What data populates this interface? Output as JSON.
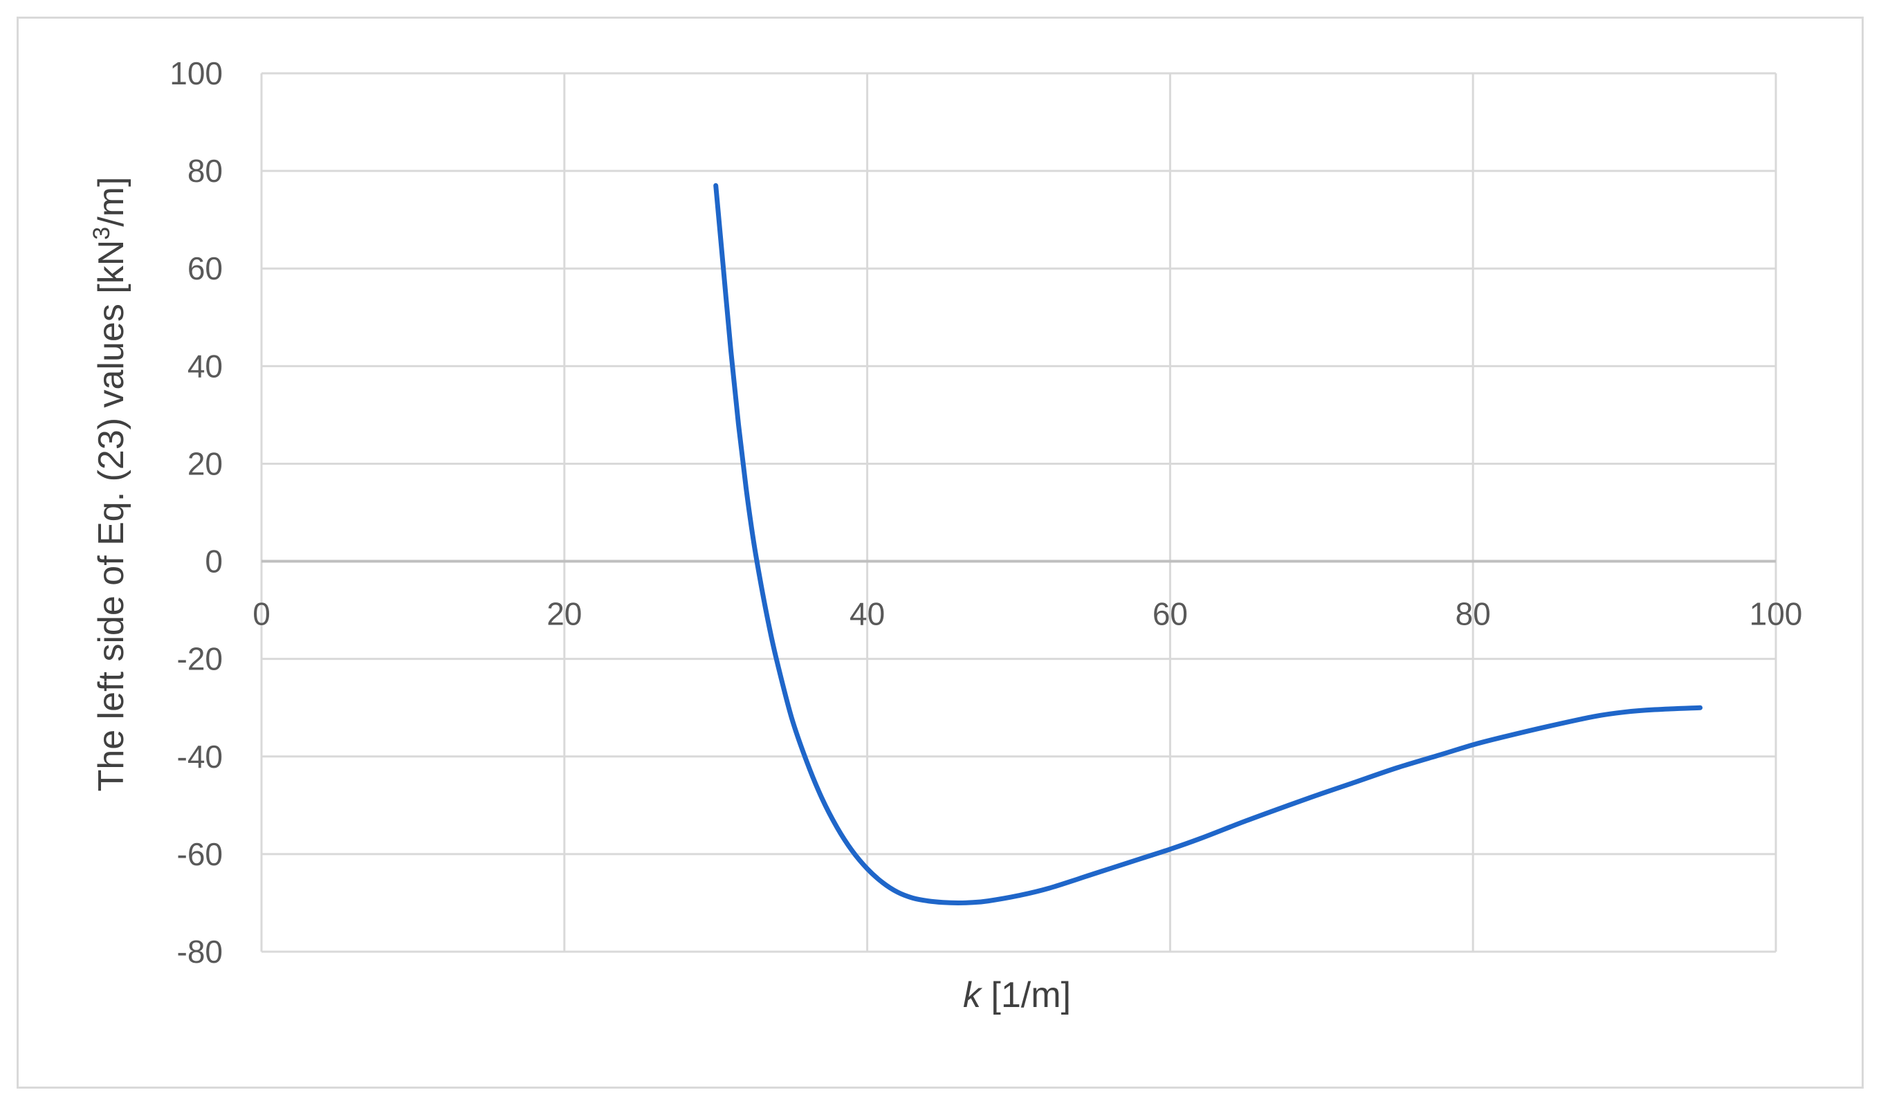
{
  "chart_data": {
    "type": "line",
    "xlabel": {
      "variable": "k",
      "unit": " [1/m]"
    },
    "ylabel": {
      "before_sup": "The left side of Eq. (23) values [kN",
      "sup": "3",
      "after_sup": "/m]"
    },
    "xlim": [
      0,
      100
    ],
    "ylim": [
      -80,
      100
    ],
    "x_ticks": [
      0,
      20,
      40,
      60,
      80,
      100
    ],
    "y_ticks": [
      100,
      80,
      60,
      40,
      20,
      0,
      -20,
      -40,
      -60,
      -80
    ],
    "grid": true,
    "legend": "none",
    "series": [
      {
        "color": "#1f66c9",
        "x": [
          30,
          30.5,
          31,
          31.5,
          32,
          32.5,
          33,
          33.5,
          34,
          35,
          36,
          37,
          38,
          39,
          40,
          41,
          42,
          43,
          44,
          45,
          46,
          47,
          48,
          50,
          52,
          55,
          58,
          60,
          62,
          65,
          68,
          70,
          72,
          75,
          78,
          80,
          82,
          85,
          88,
          90,
          92,
          95
        ],
        "y": [
          77,
          60,
          43,
          28,
          15,
          4,
          -5,
          -13,
          -20,
          -32,
          -41,
          -48.5,
          -54.5,
          -59.3,
          -63,
          -65.8,
          -67.8,
          -69,
          -69.6,
          -69.9,
          -70,
          -69.9,
          -69.6,
          -68.5,
          -67,
          -64,
          -61,
          -59,
          -56.8,
          -53.2,
          -49.8,
          -47.6,
          -45.5,
          -42.3,
          -39.5,
          -37.6,
          -36,
          -33.8,
          -31.8,
          -30.9,
          -30.4,
          -30
        ]
      }
    ]
  }
}
